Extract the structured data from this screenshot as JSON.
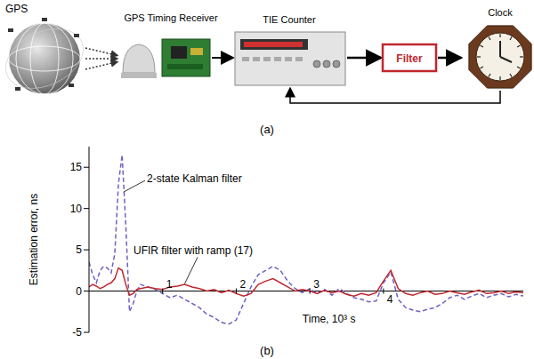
{
  "diagram": {
    "panel_label": "(a)",
    "nodes": [
      {
        "label": "GPS"
      },
      {
        "label": "GPS Timing Receiver"
      },
      {
        "label": "TIE Counter"
      },
      {
        "label": "Filter"
      },
      {
        "label": "Clock"
      }
    ]
  },
  "chart_data": {
    "panel_label": "(b)",
    "type": "line",
    "xlabel": "Time, 10³ s",
    "ylabel": "Estimation error, ns",
    "grid": false,
    "xlim": [
      0,
      5.9
    ],
    "xticks": [
      1,
      2,
      3,
      4
    ],
    "ylim": [
      -5,
      17.5
    ],
    "yticks": [
      -5,
      0,
      5,
      10,
      15
    ],
    "x": [
      0,
      0.05,
      0.1,
      0.15,
      0.2,
      0.25,
      0.3,
      0.35,
      0.4,
      0.45,
      0.5,
      0.55,
      0.6,
      0.65,
      0.7,
      0.8,
      0.9,
      1.0,
      1.1,
      1.2,
      1.3,
      1.4,
      1.5,
      1.6,
      1.7,
      1.8,
      1.9,
      2.0,
      2.1,
      2.2,
      2.3,
      2.4,
      2.5,
      2.6,
      2.7,
      2.8,
      2.9,
      3.0,
      3.1,
      3.2,
      3.3,
      3.4,
      3.5,
      3.6,
      3.7,
      3.8,
      3.9,
      4.0,
      4.1,
      4.2,
      4.3,
      4.4,
      4.5,
      4.6,
      4.7,
      4.8,
      4.9,
      5.0,
      5.1,
      5.2,
      5.3,
      5.4,
      5.5,
      5.6,
      5.7,
      5.8,
      5.9
    ],
    "series": [
      {
        "name": "2-state Kalman filter",
        "color": "#6b63c2",
        "line_style": "dashed",
        "values": [
          3.5,
          2.0,
          1.0,
          2.5,
          3.0,
          2.8,
          2.2,
          4.5,
          13.0,
          16.5,
          8.0,
          -2.5,
          -1.5,
          0.0,
          0.8,
          0.5,
          0.2,
          -0.3,
          -0.8,
          -0.5,
          -1.0,
          -1.5,
          -2.0,
          -2.8,
          -3.2,
          -3.8,
          -4.0,
          -3.5,
          -1.5,
          0.5,
          2.0,
          2.5,
          3.0,
          2.5,
          1.2,
          0.3,
          -0.2,
          0.3,
          -0.3,
          0.2,
          -0.5,
          0.3,
          -0.3,
          -0.8,
          -1.0,
          -1.3,
          -1.2,
          1.0,
          2.3,
          -1.0,
          -2.0,
          -2.3,
          -2.5,
          -2.2,
          -2.0,
          -1.5,
          -0.8,
          -0.5,
          -1.0,
          -0.6,
          -0.3,
          -0.8,
          -0.5,
          -0.3,
          -0.7,
          -0.4,
          -0.6
        ]
      },
      {
        "name": "UFIR filter with ramp (17)",
        "color": "#c0272d",
        "line_style": "solid",
        "values": [
          0.5,
          0.8,
          0.6,
          0.3,
          0.5,
          0.8,
          1.0,
          1.5,
          2.8,
          2.5,
          0.8,
          -0.5,
          -0.3,
          0.2,
          0.3,
          0.5,
          0.3,
          0.2,
          0.5,
          0.6,
          0.8,
          0.5,
          0.3,
          0.0,
          0.2,
          -0.2,
          0.1,
          -0.3,
          -0.6,
          -0.3,
          0.8,
          1.2,
          1.5,
          1.0,
          0.5,
          0.0,
          0.2,
          0.0,
          -0.3,
          0.1,
          -0.2,
          0.0,
          -0.4,
          -0.6,
          -0.3,
          -0.5,
          -0.2,
          1.2,
          2.5,
          0.3,
          -0.3,
          -0.5,
          -0.2,
          0.0,
          -0.4,
          -0.3,
          0.0,
          -0.2,
          -0.4,
          -0.1,
          0.1,
          -0.3,
          -0.2,
          0.0,
          -0.3,
          -0.1,
          -0.2
        ]
      }
    ]
  }
}
